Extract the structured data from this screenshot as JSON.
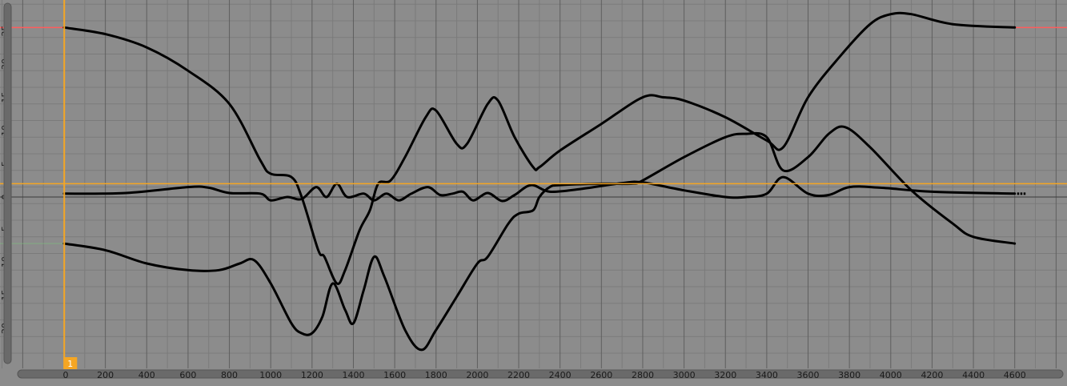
{
  "editor": {
    "current_frame": 1,
    "frame_badge_label": "1",
    "cursor_value": 2.0
  },
  "colors": {
    "background": "#8c8c8c",
    "grid_minor": "#7b7b7b",
    "grid_major": "#5f5f5f",
    "cursor": "#f5a623",
    "curve": "#000000",
    "range_guide_red": "#ff5c5c",
    "range_guide_green": "#7bbf7b"
  },
  "chart_data": {
    "type": "line",
    "title": "",
    "xlabel": "",
    "ylabel": "",
    "xlim": [
      -250,
      4850
    ],
    "ylim": [
      -26.5,
      29
    ],
    "x_ticks": [
      0,
      200,
      400,
      600,
      800,
      1000,
      1200,
      1400,
      1600,
      1800,
      2000,
      2200,
      2400,
      2600,
      2800,
      3000,
      3200,
      3400,
      3600,
      3800,
      4000,
      4200,
      4400,
      4600
    ],
    "y_ticks": [
      25,
      20,
      15,
      10,
      5,
      0,
      -5,
      -10,
      -15,
      -20
    ],
    "x_tick_labels": [
      "0",
      "200",
      "400",
      "600",
      "800",
      "1000",
      "1200",
      "1400",
      "1600",
      "1800",
      "2000",
      "2200",
      "2400",
      "2600",
      "2800",
      "3000",
      "3200",
      "3400",
      "3600",
      "3800",
      "4000",
      "4200",
      "4400",
      "4600"
    ],
    "y_tick_labels": [
      "25",
      "20",
      "15",
      "10",
      "5",
      "0",
      "-5",
      "-10",
      "-15",
      "-20"
    ],
    "grid": true,
    "cursor_x": 1,
    "cursor_y": 2.0,
    "series": [
      {
        "values": [
          [
            0,
            25.5
          ],
          [
            200,
            24.5
          ],
          [
            400,
            22.5
          ],
          [
            600,
            19
          ],
          [
            800,
            14
          ],
          [
            950,
            5.5
          ],
          [
            1000,
            3.5
          ],
          [
            1100,
            3
          ],
          [
            1150,
            0
          ],
          [
            1230,
            -8
          ],
          [
            1260,
            -9
          ],
          [
            1320,
            -13
          ],
          [
            1360,
            -11
          ],
          [
            1430,
            -5
          ],
          [
            1480,
            -2
          ],
          [
            1520,
            2
          ],
          [
            1580,
            2.5
          ],
          [
            1650,
            6
          ],
          [
            1750,
            12
          ],
          [
            1800,
            13
          ],
          [
            1900,
            8
          ],
          [
            1950,
            8
          ],
          [
            2050,
            14
          ],
          [
            2100,
            14.5
          ],
          [
            2180,
            9
          ],
          [
            2270,
            4.5
          ],
          [
            2300,
            4.5
          ],
          [
            2400,
            7
          ],
          [
            2600,
            11
          ],
          [
            2800,
            15
          ],
          [
            2900,
            15
          ],
          [
            3000,
            14.5
          ],
          [
            3200,
            12
          ],
          [
            3400,
            8.5
          ],
          [
            3480,
            7.5
          ],
          [
            3600,
            15
          ],
          [
            3750,
            21
          ],
          [
            3900,
            26
          ],
          [
            4000,
            27.5
          ],
          [
            4100,
            27.5
          ],
          [
            4300,
            26
          ],
          [
            4600,
            25.5
          ]
        ]
      },
      {
        "values": [
          [
            0,
            0.5
          ],
          [
            300,
            0.6
          ],
          [
            600,
            1.5
          ],
          [
            700,
            1.4
          ],
          [
            800,
            0.6
          ],
          [
            950,
            0.5
          ],
          [
            1000,
            -0.5
          ],
          [
            1080,
            0
          ],
          [
            1150,
            -0.3
          ],
          [
            1220,
            1.5
          ],
          [
            1270,
            0
          ],
          [
            1320,
            2
          ],
          [
            1370,
            0
          ],
          [
            1450,
            0.5
          ],
          [
            1500,
            -0.5
          ],
          [
            1560,
            0.5
          ],
          [
            1620,
            -0.5
          ],
          [
            1680,
            0.5
          ],
          [
            1760,
            1.5
          ],
          [
            1820,
            0.3
          ],
          [
            1880,
            0.5
          ],
          [
            1930,
            0.8
          ],
          [
            1980,
            -0.5
          ],
          [
            2050,
            0.6
          ],
          [
            2120,
            -0.6
          ],
          [
            2180,
            0.3
          ],
          [
            2260,
            1.8
          ],
          [
            2350,
            0.8
          ],
          [
            2500,
            1.2
          ],
          [
            2700,
            2.1
          ],
          [
            2800,
            2.2
          ],
          [
            3000,
            1
          ],
          [
            3200,
            0
          ],
          [
            3300,
            0
          ],
          [
            3400,
            0.5
          ],
          [
            3480,
            3
          ],
          [
            3600,
            0.5
          ],
          [
            3700,
            0.3
          ],
          [
            3800,
            1.5
          ],
          [
            3950,
            1.4
          ],
          [
            4200,
            0.8
          ],
          [
            4600,
            0.5
          ]
        ]
      },
      {
        "values": [
          [
            0,
            -7
          ],
          [
            200,
            -8
          ],
          [
            400,
            -10
          ],
          [
            600,
            -11
          ],
          [
            750,
            -11
          ],
          [
            850,
            -10
          ],
          [
            920,
            -9.5
          ],
          [
            1000,
            -13
          ],
          [
            1100,
            -19
          ],
          [
            1150,
            -20.5
          ],
          [
            1200,
            -20.5
          ],
          [
            1250,
            -18
          ],
          [
            1300,
            -13
          ],
          [
            1360,
            -17
          ],
          [
            1400,
            -19
          ],
          [
            1450,
            -14
          ],
          [
            1500,
            -9
          ],
          [
            1550,
            -12
          ],
          [
            1650,
            -20
          ],
          [
            1730,
            -23
          ],
          [
            1800,
            -20
          ],
          [
            1900,
            -15
          ],
          [
            2000,
            -10
          ],
          [
            2050,
            -9
          ],
          [
            2150,
            -4
          ],
          [
            2200,
            -2.5
          ],
          [
            2270,
            -2
          ],
          [
            2300,
            0
          ],
          [
            2350,
            1.5
          ],
          [
            2400,
            1.8
          ],
          [
            2600,
            2
          ],
          [
            2750,
            2
          ],
          [
            2800,
            2.5
          ],
          [
            3000,
            6
          ],
          [
            3200,
            9
          ],
          [
            3300,
            9.5
          ],
          [
            3400,
            9
          ],
          [
            3480,
            4
          ],
          [
            3600,
            6
          ],
          [
            3700,
            9.5
          ],
          [
            3780,
            10.5
          ],
          [
            3900,
            7.5
          ],
          [
            4100,
            1
          ],
          [
            4300,
            -4
          ],
          [
            4400,
            -6
          ],
          [
            4600,
            -7
          ]
        ]
      }
    ]
  }
}
